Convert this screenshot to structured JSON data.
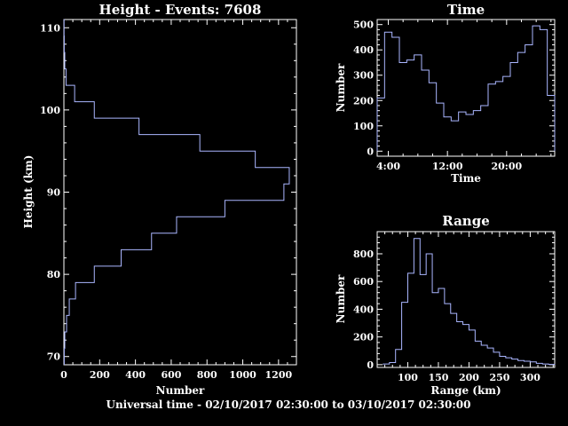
{
  "footer": "Universal time - 02/10/2017 02:30:00 to 03/10/2017 02:30:00",
  "colors": {
    "background": "#000000",
    "axes": "#ffffff",
    "series": "#aab6ff"
  },
  "chart_data": [
    {
      "id": "height",
      "type": "bar",
      "orientation": "horizontal-step",
      "title": "Height - Events: 7608",
      "xlabel": "Number",
      "ylabel": "Height (km)",
      "xlim": [
        0,
        1300
      ],
      "ylim": [
        69,
        111
      ],
      "xticks": [
        0,
        200,
        400,
        600,
        800,
        1000,
        1200
      ],
      "xtick_labels": [
        "0",
        "200",
        "400",
        "600",
        "800",
        "1000",
        "1200"
      ],
      "yticks": [
        70,
        80,
        90,
        100,
        110
      ],
      "ytick_labels": [
        "70",
        "80",
        "90",
        "100",
        "110"
      ],
      "bin_edges": [
        69,
        71,
        73,
        75,
        77,
        79,
        81,
        83,
        85,
        87,
        89,
        91,
        93,
        95,
        97,
        99,
        101,
        103,
        105,
        107,
        109,
        111
      ],
      "values": [
        2,
        5,
        15,
        30,
        65,
        170,
        320,
        490,
        630,
        900,
        1230,
        1260,
        1070,
        760,
        420,
        170,
        60,
        12,
        5,
        2,
        1
      ]
    },
    {
      "id": "time",
      "type": "bar",
      "orientation": "vertical-step",
      "title": "Time",
      "xlabel": "Time",
      "ylabel": "Number",
      "xlim": [
        0,
        24
      ],
      "ylim": [
        -20,
        520
      ],
      "xticks": [
        1.5,
        9.5,
        17.5
      ],
      "xtick_labels": [
        "4:00",
        "12:00",
        "20:00"
      ],
      "yticks": [
        0,
        100,
        200,
        300,
        400,
        500
      ],
      "ytick_labels": [
        "0",
        "100",
        "200",
        "300",
        "400",
        "500"
      ],
      "bin_edges": [
        0,
        1,
        2,
        3,
        4,
        5,
        6,
        7,
        8,
        9,
        10,
        11,
        12,
        13,
        14,
        15,
        16,
        17,
        18,
        19,
        20,
        21,
        22,
        23,
        24
      ],
      "values": [
        210,
        470,
        450,
        350,
        360,
        380,
        320,
        270,
        190,
        135,
        120,
        155,
        145,
        160,
        180,
        265,
        275,
        295,
        350,
        390,
        420,
        495,
        480,
        220
      ]
    },
    {
      "id": "range",
      "type": "bar",
      "orientation": "vertical-step",
      "title": "Range",
      "xlabel": "Range (km)",
      "ylabel": "Number",
      "xlim": [
        50,
        340
      ],
      "ylim": [
        -20,
        960
      ],
      "xticks": [
        100,
        150,
        200,
        250,
        300
      ],
      "xtick_labels": [
        "100",
        "150",
        "200",
        "250",
        "300"
      ],
      "yticks": [
        0,
        200,
        400,
        600,
        800
      ],
      "ytick_labels": [
        "0",
        "200",
        "400",
        "600",
        "800"
      ],
      "bin_edges": [
        60,
        70,
        80,
        90,
        100,
        110,
        120,
        130,
        140,
        150,
        160,
        170,
        180,
        190,
        200,
        210,
        220,
        230,
        240,
        250,
        260,
        270,
        280,
        290,
        300,
        310,
        320,
        330,
        340
      ],
      "values": [
        5,
        15,
        110,
        450,
        660,
        910,
        650,
        800,
        520,
        550,
        440,
        370,
        310,
        290,
        250,
        170,
        140,
        120,
        90,
        60,
        50,
        40,
        30,
        25,
        20,
        10,
        5,
        2
      ]
    }
  ]
}
